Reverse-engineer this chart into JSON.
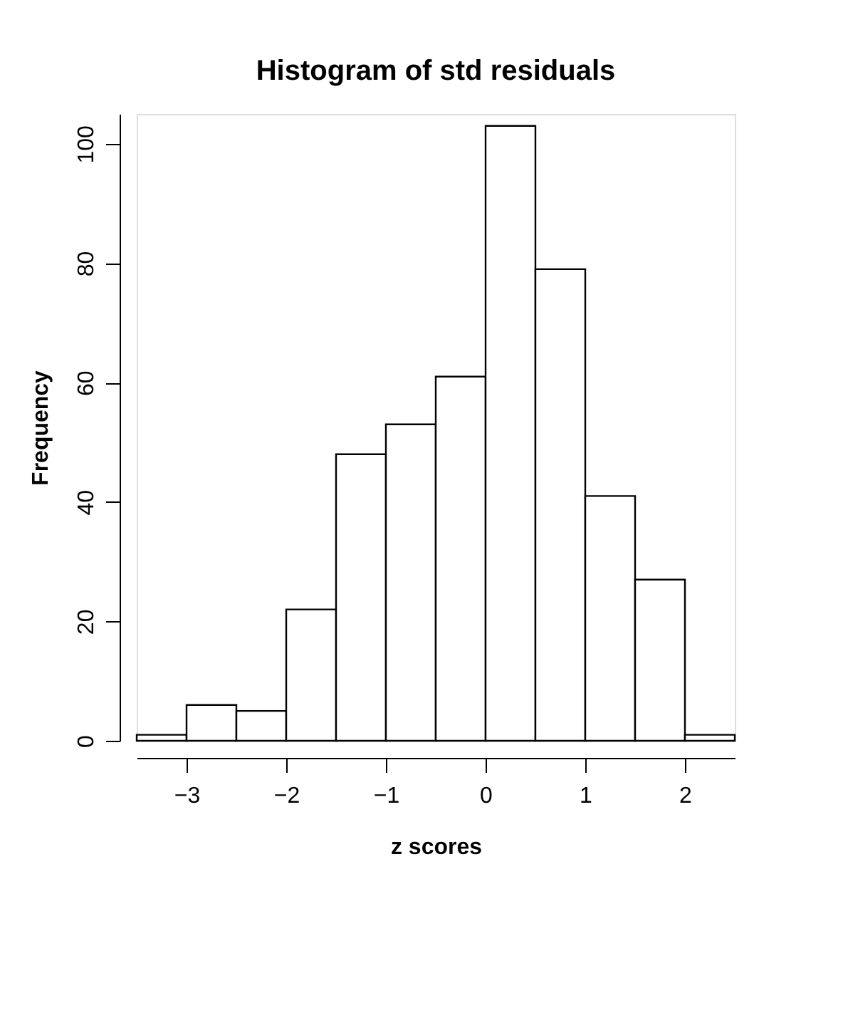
{
  "chart_data": {
    "type": "histogram",
    "title": "Histogram of std residuals",
    "xlabel": "z scores",
    "ylabel": "Frequency",
    "bins": [
      -3.5,
      -3,
      -2.5,
      -2,
      -1.5,
      -1,
      -0.5,
      0,
      0.5,
      1,
      1.5,
      2,
      2.5
    ],
    "values": [
      1,
      6,
      5,
      22,
      48,
      53,
      61,
      103,
      79,
      41,
      27,
      1
    ],
    "color": "#ffffff",
    "xlim": [
      -3.5,
      2.5
    ],
    "xticks": [
      -3,
      -2,
      -1,
      0,
      1,
      2
    ],
    "ylim": [
      0,
      105
    ],
    "yticks": [
      0,
      20,
      40,
      60,
      80,
      100
    ],
    "grid": false
  }
}
